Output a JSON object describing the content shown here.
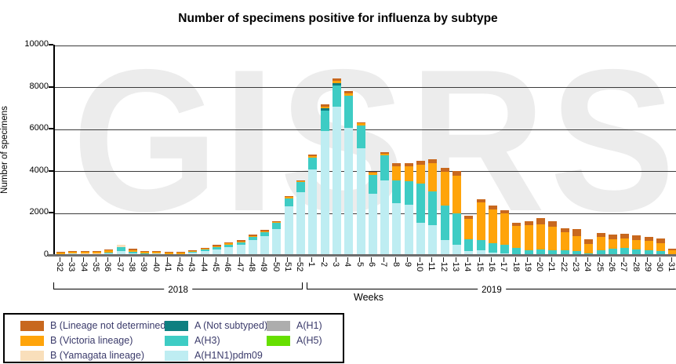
{
  "chart_data": {
    "type": "bar",
    "stacked": true,
    "title": "Number of specimens positive for influenza by subtype",
    "ylabel": "Number of specimens",
    "xlabel": "Weeks",
    "watermark": "GISRS",
    "ylim": [
      0,
      10000
    ],
    "y_ticks": [
      0,
      2000,
      4000,
      6000,
      8000,
      10000
    ],
    "grid": true,
    "legend_position": "bottom-left",
    "stack_order": [
      "A(H1N1)pdm09",
      "A(H3)",
      "A (Not subtyped)",
      "B (Yamagata lineage)",
      "B (Victoria lineage)",
      "B (Lineage not determined)"
    ],
    "colors": {
      "B (Lineage not determined)": "#C8681E",
      "B (Victoria lineage)": "#FFA40A",
      "B (Yamagata lineage)": "#F9DFBB",
      "A (Not subtyped)": "#0E7F80",
      "A(H3)": "#3ECCC4",
      "A(H1N1)pdm09": "#BEEDF2",
      "A(H1)": "#ADADAD",
      "A(H5)": "#66DF00"
    },
    "legend_columns": [
      [
        "B (Lineage not determined)",
        "B (Victoria lineage)",
        "B (Yamagata lineage)"
      ],
      [
        "A (Not subtyped)",
        "A(H3)",
        "A(H1N1)pdm09"
      ],
      [
        "A(H1)",
        "A(H5)"
      ]
    ],
    "groups": [
      {
        "year": "2018",
        "weeks": [
          32,
          33,
          34,
          35,
          36,
          37,
          38,
          39,
          40,
          41,
          42,
          43,
          44,
          45,
          46,
          47,
          48,
          49,
          50,
          51,
          52
        ]
      },
      {
        "year": "2019",
        "weeks": [
          1,
          2,
          3,
          4,
          5,
          6,
          7,
          8,
          9,
          10,
          11,
          12,
          13,
          14,
          15,
          16,
          17,
          18,
          19,
          20,
          21,
          22,
          23,
          24,
          25,
          26,
          27,
          28,
          29,
          30,
          31
        ]
      }
    ],
    "bars": [
      {
        "year": 2018,
        "week": 32,
        "stack": [
          40,
          10,
          0,
          0,
          50,
          40
        ]
      },
      {
        "year": 2018,
        "week": 33,
        "stack": [
          60,
          10,
          0,
          0,
          80,
          55
        ]
      },
      {
        "year": 2018,
        "week": 34,
        "stack": [
          40,
          10,
          0,
          20,
          70,
          30
        ]
      },
      {
        "year": 2018,
        "week": 35,
        "stack": [
          40,
          10,
          0,
          20,
          70,
          30
        ]
      },
      {
        "year": 2018,
        "week": 36,
        "stack": [
          90,
          30,
          0,
          0,
          90,
          45
        ]
      },
      {
        "year": 2018,
        "week": 37,
        "stack": [
          200,
          170,
          0,
          110,
          0,
          0
        ]
      },
      {
        "year": 2018,
        "week": 38,
        "stack": [
          90,
          60,
          0,
          0,
          90,
          50
        ]
      },
      {
        "year": 2018,
        "week": 39,
        "stack": [
          50,
          25,
          0,
          0,
          70,
          50
        ]
      },
      {
        "year": 2018,
        "week": 40,
        "stack": [
          60,
          25,
          0,
          0,
          60,
          50
        ]
      },
      {
        "year": 2018,
        "week": 41,
        "stack": [
          40,
          15,
          0,
          0,
          60,
          30
        ]
      },
      {
        "year": 2018,
        "week": 42,
        "stack": [
          40,
          15,
          0,
          0,
          55,
          35
        ]
      },
      {
        "year": 2018,
        "week": 43,
        "stack": [
          120,
          25,
          0,
          0,
          60,
          25
        ]
      },
      {
        "year": 2018,
        "week": 44,
        "stack": [
          200,
          50,
          0,
          0,
          60,
          30
        ]
      },
      {
        "year": 2018,
        "week": 45,
        "stack": [
          280,
          90,
          0,
          0,
          60,
          50
        ]
      },
      {
        "year": 2018,
        "week": 46,
        "stack": [
          390,
          110,
          0,
          0,
          50,
          50
        ]
      },
      {
        "year": 2018,
        "week": 47,
        "stack": [
          480,
          130,
          0,
          0,
          45,
          50
        ]
      },
      {
        "year": 2018,
        "week": 48,
        "stack": [
          700,
          170,
          0,
          0,
          45,
          45
        ]
      },
      {
        "year": 2018,
        "week": 49,
        "stack": [
          900,
          200,
          0,
          0,
          40,
          40
        ]
      },
      {
        "year": 2018,
        "week": 50,
        "stack": [
          1250,
          270,
          0,
          0,
          40,
          40
        ]
      },
      {
        "year": 2018,
        "week": 51,
        "stack": [
          2300,
          400,
          0,
          0,
          50,
          40
        ]
      },
      {
        "year": 2018,
        "week": 52,
        "stack": [
          3000,
          480,
          0,
          0,
          50,
          40
        ]
      },
      {
        "year": 2019,
        "week": 1,
        "stack": [
          4080,
          570,
          0,
          0,
          80,
          40
        ]
      },
      {
        "year": 2019,
        "week": 2,
        "stack": [
          5890,
          1000,
          100,
          0,
          85,
          90
        ]
      },
      {
        "year": 2019,
        "week": 3,
        "stack": [
          7060,
          1030,
          80,
          0,
          125,
          120
        ]
      },
      {
        "year": 2019,
        "week": 4,
        "stack": [
          6060,
          1520,
          0,
          0,
          125,
          120
        ]
      },
      {
        "year": 2019,
        "week": 5,
        "stack": [
          5100,
          1060,
          0,
          0,
          110,
          60
        ]
      },
      {
        "year": 2019,
        "week": 6,
        "stack": [
          2900,
          930,
          0,
          0,
          80,
          60
        ]
      },
      {
        "year": 2019,
        "week": 7,
        "stack": [
          3550,
          1190,
          0,
          0,
          100,
          60
        ]
      },
      {
        "year": 2019,
        "week": 8,
        "stack": [
          2480,
          1080,
          0,
          0,
          680,
          150
        ]
      },
      {
        "year": 2019,
        "week": 9,
        "stack": [
          2400,
          1120,
          0,
          0,
          710,
          150
        ]
      },
      {
        "year": 2019,
        "week": 10,
        "stack": [
          1540,
          1860,
          0,
          0,
          910,
          170
        ]
      },
      {
        "year": 2019,
        "week": 11,
        "stack": [
          1410,
          1620,
          0,
          0,
          1360,
          190
        ]
      },
      {
        "year": 2019,
        "week": 12,
        "stack": [
          725,
          1620,
          0,
          0,
          1625,
          180
        ]
      },
      {
        "year": 2019,
        "week": 13,
        "stack": [
          480,
          1515,
          0,
          0,
          1780,
          210
        ]
      },
      {
        "year": 2019,
        "week": 14,
        "stack": [
          170,
          585,
          0,
          0,
          970,
          150
        ]
      },
      {
        "year": 2019,
        "week": 15,
        "stack": [
          215,
          510,
          0,
          0,
          1780,
          150
        ]
      },
      {
        "year": 2019,
        "week": 16,
        "stack": [
          105,
          460,
          0,
          0,
          1615,
          160
        ]
      },
      {
        "year": 2019,
        "week": 17,
        "stack": [
          60,
          420,
          0,
          0,
          1490,
          150
        ]
      },
      {
        "year": 2019,
        "week": 18,
        "stack": [
          20,
          310,
          0,
          0,
          1060,
          150
        ]
      },
      {
        "year": 2019,
        "week": 19,
        "stack": [
          0,
          230,
          0,
          0,
          1205,
          160
        ]
      },
      {
        "year": 2019,
        "week": 20,
        "stack": [
          0,
          250,
          0,
          0,
          1220,
          290
        ]
      },
      {
        "year": 2019,
        "week": 21,
        "stack": [
          0,
          230,
          0,
          0,
          1120,
          250
        ]
      },
      {
        "year": 2019,
        "week": 22,
        "stack": [
          0,
          240,
          0,
          0,
          860,
          190
        ]
      },
      {
        "year": 2019,
        "week": 23,
        "stack": [
          0,
          170,
          0,
          0,
          745,
          310
        ]
      },
      {
        "year": 2019,
        "week": 24,
        "stack": [
          0,
          85,
          0,
          0,
          430,
          240
        ]
      },
      {
        "year": 2019,
        "week": 25,
        "stack": [
          0,
          230,
          0,
          0,
          620,
          190
        ]
      },
      {
        "year": 2019,
        "week": 26,
        "stack": [
          0,
          290,
          0,
          0,
          460,
          225
        ]
      },
      {
        "year": 2019,
        "week": 27,
        "stack": [
          0,
          325,
          0,
          0,
          465,
          225
        ]
      },
      {
        "year": 2019,
        "week": 28,
        "stack": [
          0,
          265,
          0,
          0,
          450,
          225
        ]
      },
      {
        "year": 2019,
        "week": 29,
        "stack": [
          0,
          225,
          0,
          0,
          440,
          210
        ]
      },
      {
        "year": 2019,
        "week": 30,
        "stack": [
          0,
          200,
          0,
          0,
          380,
          210
        ]
      },
      {
        "year": 2019,
        "week": 31,
        "stack": [
          0,
          50,
          0,
          0,
          180,
          60
        ]
      }
    ]
  }
}
